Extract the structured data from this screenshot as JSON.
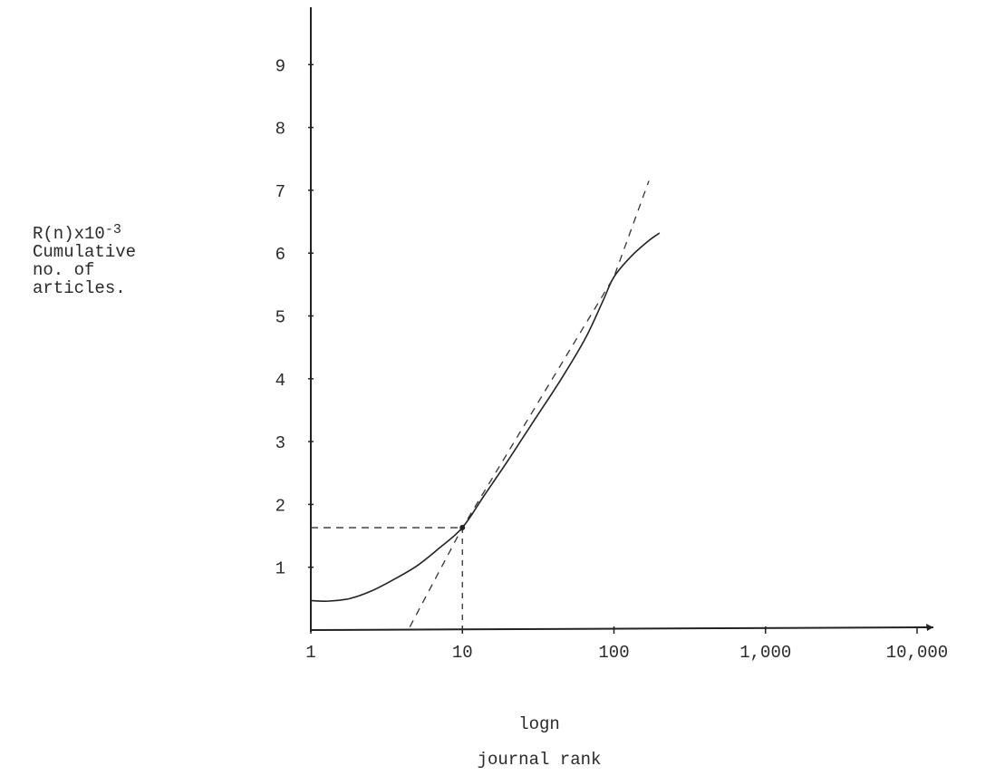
{
  "chart_data": {
    "type": "line",
    "title": "",
    "xlabel_line1": "logn",
    "xlabel_line2": "journal rank",
    "ylabel": {
      "prefix": "R(n)x10",
      "exponent": "-3",
      "lines": [
        "Cumulative",
        "no. of",
        "articles."
      ]
    },
    "x_scale": "log",
    "xlim": [
      1,
      10000
    ],
    "ylim": [
      0,
      9.8
    ],
    "x_ticks": [
      {
        "value": 1,
        "label": "1"
      },
      {
        "value": 10,
        "label": "10"
      },
      {
        "value": 100,
        "label": "100"
      },
      {
        "value": 1000,
        "label": "1,000"
      },
      {
        "value": 10000,
        "label": "10,000"
      }
    ],
    "y_ticks": [
      {
        "value": 1,
        "label": "1"
      },
      {
        "value": 2,
        "label": "2"
      },
      {
        "value": 3,
        "label": "3"
      },
      {
        "value": 4,
        "label": "4"
      },
      {
        "value": 5,
        "label": "5"
      },
      {
        "value": 6,
        "label": "6"
      },
      {
        "value": 7,
        "label": "7"
      },
      {
        "value": 8,
        "label": "8"
      },
      {
        "value": 9,
        "label": "9"
      }
    ],
    "grid": false,
    "series": [
      {
        "style": "solid",
        "x": [
          1,
          1.3,
          1.8,
          2.5,
          3.5,
          5,
          7,
          10,
          14,
          20,
          30,
          45,
          65,
          85,
          100,
          130,
          170,
          200
        ],
        "y": [
          0.47,
          0.46,
          0.5,
          0.62,
          0.8,
          1.02,
          1.3,
          1.63,
          2.15,
          2.7,
          3.35,
          4.0,
          4.65,
          5.25,
          5.62,
          5.95,
          6.2,
          6.32
        ]
      },
      {
        "style": "dashed",
        "x": [
          4.5,
          10,
          100,
          170
        ],
        "y": [
          0.05,
          1.63,
          5.62,
          7.15
        ]
      }
    ],
    "reference_point": {
      "x": 10,
      "y": 1.63
    }
  }
}
